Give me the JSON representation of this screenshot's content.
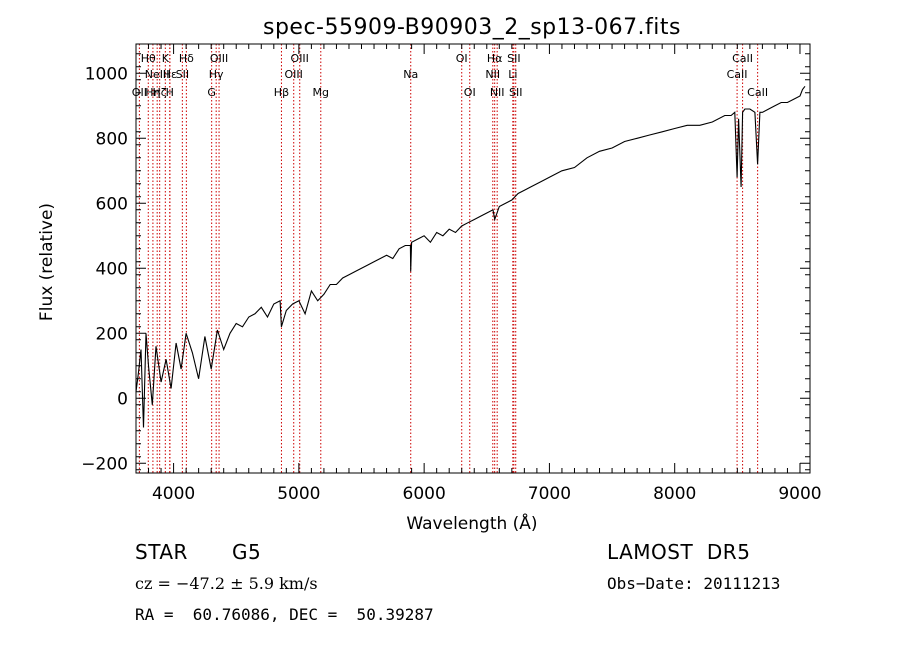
{
  "chart_data": {
    "type": "line",
    "title": "spec-55909-B90903_2_sp13-067.fits",
    "xlabel": "Wavelength (Å)",
    "ylabel": "Flux (relative)",
    "xlim": [
      3700,
      9080
    ],
    "ylim": [
      -230,
      1090
    ],
    "xticks": [
      4000,
      5000,
      6000,
      7000,
      8000,
      9000
    ],
    "xtick_labels": [
      "4000",
      "5000",
      "6000",
      "7000",
      "8000",
      "9000"
    ],
    "yticks": [
      -200,
      0,
      200,
      400,
      600,
      800,
      1000
    ],
    "ytick_labels": [
      "−200",
      "0",
      "200",
      "400",
      "600",
      "800",
      "1000"
    ],
    "series": [
      {
        "x": [
          3700,
          3720,
          3740,
          3760,
          3780,
          3800,
          3830,
          3860,
          3900,
          3940,
          3980,
          4020,
          4060,
          4100,
          4150,
          4200,
          4250,
          4300,
          4350,
          4400,
          4450,
          4500,
          4550,
          4600,
          4650,
          4700,
          4750,
          4800,
          4850,
          4861,
          4900,
          4950,
          5000,
          5050,
          5100,
          5150,
          5200,
          5250,
          5300,
          5350,
          5400,
          5450,
          5500,
          5550,
          5600,
          5650,
          5700,
          5750,
          5800,
          5850,
          5890,
          5893,
          5900,
          5950,
          6000,
          6050,
          6100,
          6150,
          6200,
          6250,
          6300,
          6350,
          6400,
          6450,
          6500,
          6550,
          6563,
          6600,
          6650,
          6700,
          6750,
          6800,
          6850,
          6900,
          6950,
          7000,
          7100,
          7200,
          7300,
          7400,
          7500,
          7600,
          7700,
          7800,
          7900,
          8000,
          8100,
          8200,
          8300,
          8400,
          8450,
          8480,
          8498,
          8510,
          8530,
          8542,
          8560,
          8600,
          8640,
          8662,
          8680,
          8700,
          8750,
          8800,
          8850,
          8900,
          8950,
          9000,
          9020,
          9040
        ],
        "y": [
          20,
          80,
          150,
          -90,
          200,
          100,
          -20,
          160,
          50,
          120,
          30,
          170,
          90,
          200,
          140,
          60,
          190,
          90,
          210,
          150,
          200,
          230,
          220,
          250,
          260,
          280,
          250,
          290,
          300,
          220,
          270,
          290,
          300,
          260,
          330,
          300,
          320,
          350,
          350,
          370,
          380,
          390,
          400,
          410,
          420,
          430,
          440,
          430,
          460,
          470,
          470,
          390,
          480,
          490,
          500,
          480,
          510,
          500,
          520,
          510,
          530,
          540,
          550,
          560,
          570,
          580,
          550,
          590,
          600,
          610,
          630,
          640,
          650,
          660,
          670,
          680,
          700,
          710,
          740,
          760,
          770,
          790,
          800,
          810,
          820,
          830,
          840,
          840,
          850,
          870,
          870,
          880,
          680,
          860,
          650,
          880,
          890,
          890,
          880,
          720,
          880,
          880,
          890,
          900,
          910,
          910,
          920,
          930,
          950,
          960
        ]
      }
    ],
    "lines": [
      {
        "w": 3727,
        "label": "OII",
        "row": 3
      },
      {
        "w": 3798,
        "label": "Hθ",
        "row": 1
      },
      {
        "w": 3835,
        "label": "Hη",
        "row": 3
      },
      {
        "w": 3869,
        "label": "NeIII",
        "row": 2
      },
      {
        "w": 3889,
        "label": "Hζ",
        "row": 3
      },
      {
        "w": 3934,
        "label": "K",
        "row": 1
      },
      {
        "w": 3970,
        "label": "H",
        "row": 3
      },
      {
        "w": 3970,
        "label": "Hε",
        "row": 2
      },
      {
        "w": 4070,
        "label": "SII",
        "row": 2
      },
      {
        "w": 4102,
        "label": "Hδ",
        "row": 1
      },
      {
        "w": 4304,
        "label": "G",
        "row": 3
      },
      {
        "w": 4340,
        "label": "Hγ",
        "row": 2
      },
      {
        "w": 4363,
        "label": "OIII",
        "row": 1
      },
      {
        "w": 4861,
        "label": "Hβ",
        "row": 3
      },
      {
        "w": 4959,
        "label": "OIII",
        "row": 2
      },
      {
        "w": 5007,
        "label": "OIII",
        "row": 1
      },
      {
        "w": 5175,
        "label": "Mg",
        "row": 3
      },
      {
        "w": 5893,
        "label": "Na",
        "row": 2
      },
      {
        "w": 6300,
        "label": "OI",
        "row": 1
      },
      {
        "w": 6364,
        "label": "OI",
        "row": 3
      },
      {
        "w": 6548,
        "label": "NII",
        "row": 2
      },
      {
        "w": 6563,
        "label": "Hα",
        "row": 1
      },
      {
        "w": 6583,
        "label": "NII",
        "row": 3
      },
      {
        "w": 6708,
        "label": "Li",
        "row": 2
      },
      {
        "w": 6716,
        "label": "SII",
        "row": 1
      },
      {
        "w": 6731,
        "label": "SII",
        "row": 3
      },
      {
        "w": 8498,
        "label": "CaII",
        "row": 2
      },
      {
        "w": 8542,
        "label": "CaII",
        "row": 1
      },
      {
        "w": 8662,
        "label": "CaII",
        "row": 3
      }
    ],
    "grid": false,
    "colors": {
      "spectrum": "#000000",
      "lines": "#cc0000",
      "axis": "#000000"
    }
  },
  "info": {
    "class_label": "STAR",
    "subclass": "G5",
    "survey": "LAMOST  DR5",
    "cz_text": "cz = −47.2 ± 5.9 km/s",
    "obs_date": "Obs−Date: 20111213",
    "radec": "RA =  60.76086, DEC =  50.39287"
  }
}
